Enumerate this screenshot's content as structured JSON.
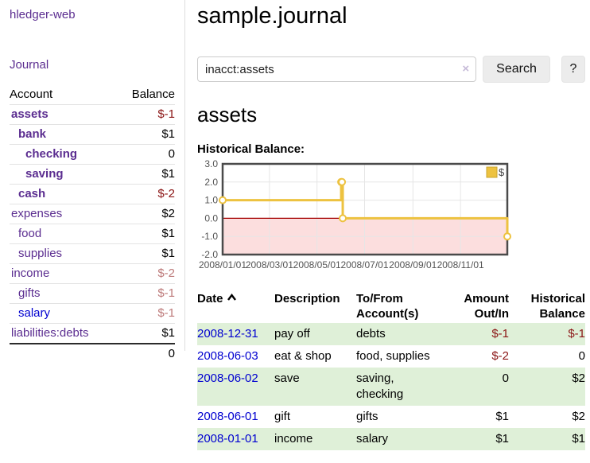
{
  "colors": {
    "brand_purple": "#5b2d90",
    "link_blue": "#0000d0",
    "negative_strong": "#8b1515",
    "negative_soft": "#bd7a7a",
    "row_stripe_green": "#dff0d8",
    "chart_gold": "#edc240"
  },
  "app": {
    "brand": "hledger-web"
  },
  "nav": {
    "journal": "Journal"
  },
  "sidebar": {
    "header": {
      "account": "Account",
      "balance": "Balance"
    },
    "accounts": [
      {
        "name": "assets",
        "balance": "$-1",
        "indent": 1,
        "bold": true,
        "blue": false,
        "balance_style": "negative-strong"
      },
      {
        "name": "bank",
        "balance": "$1",
        "indent": 2,
        "bold": true,
        "blue": false,
        "balance_style": "normal"
      },
      {
        "name": "checking",
        "balance": "0",
        "indent": 3,
        "bold": true,
        "blue": false,
        "balance_style": "normal"
      },
      {
        "name": "saving",
        "balance": "$1",
        "indent": 3,
        "bold": true,
        "blue": false,
        "balance_style": "normal"
      },
      {
        "name": "cash",
        "balance": "$-2",
        "indent": 2,
        "bold": true,
        "blue": false,
        "balance_style": "negative-strong"
      },
      {
        "name": "expenses",
        "balance": "$2",
        "indent": 1,
        "bold": false,
        "blue": false,
        "balance_style": "normal"
      },
      {
        "name": "food",
        "balance": "$1",
        "indent": 2,
        "bold": false,
        "blue": false,
        "balance_style": "normal"
      },
      {
        "name": "supplies",
        "balance": "$1",
        "indent": 2,
        "bold": false,
        "blue": false,
        "balance_style": "normal"
      },
      {
        "name": "income",
        "balance": "$-2",
        "indent": 1,
        "bold": false,
        "blue": false,
        "balance_style": "negative-soft"
      },
      {
        "name": "gifts",
        "balance": "$-1",
        "indent": 2,
        "bold": false,
        "blue": false,
        "balance_style": "negative-soft"
      },
      {
        "name": "salary",
        "balance": "$-1",
        "indent": 2,
        "bold": false,
        "blue": true,
        "balance_style": "negative-soft"
      },
      {
        "name": "liabilities:debts",
        "balance": "$1",
        "indent": 1,
        "bold": false,
        "blue": false,
        "balance_style": "normal"
      }
    ],
    "total": "0"
  },
  "main": {
    "title": "sample.journal",
    "search": {
      "value": "inacct:assets",
      "clear_icon": "×",
      "search_button": "Search",
      "help_button": "?"
    },
    "account_title": "assets",
    "chart_heading": "Historical Balance:"
  },
  "chart_data": {
    "type": "line",
    "step": true,
    "title": "Historical Balance",
    "x_range": [
      "2008-01-01",
      "2008-12-31"
    ],
    "y_range": [
      -2,
      3
    ],
    "y_ticks": [
      "3.0",
      "2.0",
      "1.0",
      "0.0",
      "-1.0",
      "-2.0"
    ],
    "x_ticks": [
      {
        "date": "2008-01-01",
        "label": "2008/01/01"
      },
      {
        "date": "2008-03-01",
        "label": "2008/03/01"
      },
      {
        "date": "2008-05-01",
        "label": "2008/05/01"
      },
      {
        "date": "2008-07-01",
        "label": "2008/07/01"
      },
      {
        "date": "2008-09-01",
        "label": "2008/09/01"
      },
      {
        "date": "2008-11-01",
        "label": "2008/11/01"
      }
    ],
    "series": [
      {
        "name": "$",
        "color": "#edc240",
        "points": [
          [
            "2008-01-01",
            1
          ],
          [
            "2008-06-01",
            2
          ],
          [
            "2008-06-02",
            2
          ],
          [
            "2008-06-03",
            0
          ],
          [
            "2008-12-31",
            -1
          ]
        ]
      }
    ],
    "negative_region": {
      "from": 0,
      "to": -2,
      "fill": "#fcdede",
      "zero_line_color": "#a40000"
    },
    "grid_color": "#e6e6e6",
    "border_color": "#4a4a4a",
    "tick_label_color": "#545454",
    "legend": {
      "position": "top-right",
      "entries": [
        {
          "label": "$",
          "color": "#edc240"
        }
      ]
    }
  },
  "register": {
    "columns": [
      {
        "line1": "Date",
        "line2": ""
      },
      {
        "line1": "Description",
        "line2": ""
      },
      {
        "line1": "To/From",
        "line2": "Account(s)"
      },
      {
        "line1": "Amount",
        "line2": "Out/In"
      },
      {
        "line1": "Historical",
        "line2": "Balance"
      }
    ],
    "rows": [
      {
        "date": "2008-12-31",
        "description": "pay off",
        "accounts": "debts",
        "amount": "$-1",
        "amount_style": "negative-strong",
        "balance": "$-1",
        "balance_style": "negative-strong"
      },
      {
        "date": "2008-06-03",
        "description": "eat & shop",
        "accounts": "food, supplies",
        "amount": "$-2",
        "amount_style": "negative-strong",
        "balance": "0",
        "balance_style": "normal"
      },
      {
        "date": "2008-06-02",
        "description": "save",
        "accounts": "saving, checking",
        "amount": "0",
        "amount_style": "normal",
        "balance": "$2",
        "balance_style": "normal"
      },
      {
        "date": "2008-06-01",
        "description": "gift",
        "accounts": "gifts",
        "amount": "$1",
        "amount_style": "normal",
        "balance": "$2",
        "balance_style": "normal"
      },
      {
        "date": "2008-01-01",
        "description": "income",
        "accounts": "salary",
        "amount": "$1",
        "amount_style": "normal",
        "balance": "$1",
        "balance_style": "normal"
      }
    ]
  }
}
